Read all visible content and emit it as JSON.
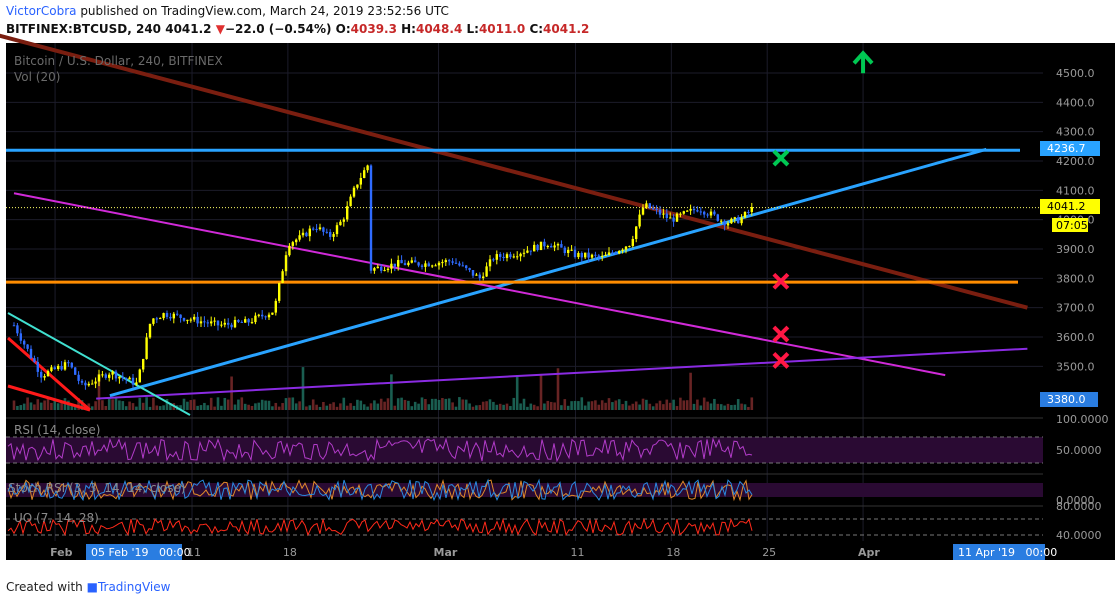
{
  "header": {
    "author": "VictorCobra",
    "published_text": "published on TradingView.com, March 24, 2019 23:52:56 UTC",
    "symbol": "BITFINEX:BTCUSD, 240",
    "last": "4041.2",
    "change_arrow": "▼",
    "change": "−22.0 (−0.54%)",
    "o_label": "O:",
    "o": "4039.3",
    "h_label": "H:",
    "h": "4048.4",
    "l_label": "L:",
    "l": "4011.0",
    "c_label": "C:",
    "c": "4041.2"
  },
  "legend": {
    "title": "Bitcoin / U.S. Dollar, 240, BITFINEX",
    "vol": "Vol (20)",
    "rsi": "RSI (14, close)",
    "stoch": "Stoch RSI (3, 3, 14, 14, close)",
    "uo": "UO (7, 14, 28)"
  },
  "price_tags": {
    "resistance": "4236.7",
    "last": "4041.2",
    "countdown": "07:05",
    "low": "3380.0"
  },
  "indicator_ticks": {
    "rsi": [
      "100.0000",
      "50.0000"
    ],
    "stoch": [
      "0.0000"
    ],
    "uo": [
      "80.0000",
      "40.0000"
    ]
  },
  "time_labels": {
    "ticks": [
      "Feb",
      "11",
      "18",
      "Mar",
      "11",
      "18",
      "25",
      "Apr"
    ],
    "cursor_left": "05 Feb '19   00:00",
    "cursor_right": "11 Apr '19   00:00"
  },
  "footer": {
    "created_with": "Created with",
    "brand": "TradingView"
  },
  "colors": {
    "background": "#000000",
    "up_candle": "#ffff00",
    "down_candle": "#2f6bff",
    "resistance_line": "#29a3ff",
    "support_line": "#ff8c00",
    "downtrend_line": "#7a1e10",
    "magenta_line": "#d02ad8",
    "purple_line": "#8a2be2",
    "target_up": "#00c853",
    "target_down": "#ff1744"
  },
  "chart_data": {
    "type": "candlestick",
    "title": "Bitcoin / U.S. Dollar, 240, BITFINEX",
    "y_axis": {
      "ticks": [
        3500,
        3600,
        3700,
        3800,
        3900,
        4000,
        4100,
        4200,
        4300,
        4400,
        4500
      ],
      "ylim": [
        3380,
        4560
      ]
    },
    "x_axis": {
      "ticks": [
        "Feb",
        "11",
        "18",
        "Mar",
        "11",
        "18",
        "25",
        "Apr"
      ],
      "range": [
        "2019-01-29",
        "2019-04-11"
      ]
    },
    "close_path": [
      [
        "2019-01-29",
        3640
      ],
      [
        "2019-01-31",
        3470
      ],
      [
        "2019-02-02",
        3510
      ],
      [
        "2019-02-03",
        3430
      ],
      [
        "2019-02-05",
        3480
      ],
      [
        "2019-02-07",
        3440
      ],
      [
        "2019-02-08",
        3660
      ],
      [
        "2019-02-09",
        3680
      ],
      [
        "2019-02-11",
        3660
      ],
      [
        "2019-02-13",
        3640
      ],
      [
        "2019-02-15",
        3650
      ],
      [
        "2019-02-17",
        3690
      ],
      [
        "2019-02-18",
        3920
      ],
      [
        "2019-02-19",
        3940
      ],
      [
        "2019-02-20",
        3980
      ],
      [
        "2019-02-21",
        3940
      ],
      [
        "2019-02-22",
        4000
      ],
      [
        "2019-02-23",
        4120
      ],
      [
        "2019-02-24",
        4200
      ],
      [
        "2019-02-24",
        3830
      ],
      [
        "2019-02-26",
        3850
      ],
      [
        "2019-02-28",
        3850
      ],
      [
        "2019-03-02",
        3860
      ],
      [
        "2019-03-04",
        3800
      ],
      [
        "2019-03-05",
        3870
      ],
      [
        "2019-03-07",
        3890
      ],
      [
        "2019-03-09",
        3920
      ],
      [
        "2019-03-11",
        3880
      ],
      [
        "2019-03-13",
        3870
      ],
      [
        "2019-03-15",
        3920
      ],
      [
        "2019-03-16",
        4050
      ],
      [
        "2019-03-18",
        4000
      ],
      [
        "2019-03-20",
        4040
      ],
      [
        "2019-03-22",
        3990
      ],
      [
        "2019-03-23",
        4000
      ],
      [
        "2019-03-24",
        4041.2
      ]
    ],
    "horizontal_levels": [
      {
        "value": 4236.7,
        "label": "4236.7"
      },
      {
        "value": 3787,
        "label": ""
      }
    ],
    "trendlines": [
      {
        "from": [
          "2019-01-18",
          4750
        ],
        "to": [
          "2019-04-13",
          3700
        ]
      },
      {
        "from": [
          "2019-02-05",
          3400
        ],
        "to": [
          "2019-04-10",
          4240
        ]
      },
      {
        "from": [
          "2019-01-29",
          4090
        ],
        "to": [
          "2019-04-07",
          3470
        ]
      },
      {
        "from": [
          "2019-02-04",
          3390
        ],
        "to": [
          "2019-04-13",
          3560
        ]
      }
    ],
    "target_markers": [
      {
        "type": "up",
        "date": "2019-04-01",
        "price": 4540
      },
      {
        "type": "cross_green",
        "date": "2019-03-26",
        "price": 4210
      },
      {
        "type": "cross_red",
        "date": "2019-03-26",
        "price": 3790
      },
      {
        "type": "cross_red",
        "date": "2019-03-26",
        "price": 3610
      },
      {
        "type": "cross_red",
        "date": "2019-03-26",
        "price": 3520
      }
    ],
    "last_price": 4041.2,
    "volume_panel": true,
    "indicators": [
      "RSI (14, close)",
      "Stoch RSI (3, 3, 14, 14, close)",
      "UO (7, 14, 28)"
    ],
    "grid": true
  }
}
